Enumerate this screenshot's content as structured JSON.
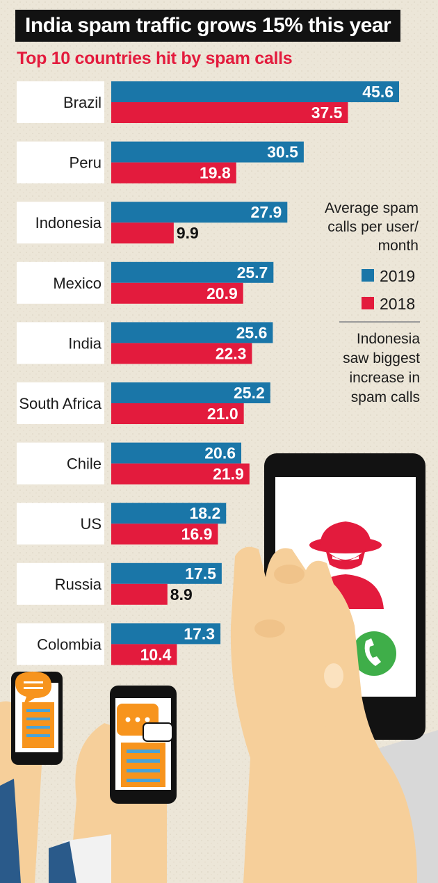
{
  "headline": "India spam traffic grows 15% this year",
  "colors": {
    "y2019": "#1a76a8",
    "y2018": "#e31b3d",
    "dark": "#121212"
  },
  "legend": {
    "title": [
      "Average spam",
      "calls per user/",
      "month"
    ],
    "items": [
      {
        "label": "2019",
        "color": "#1a76a8"
      },
      {
        "label": "2018",
        "color": "#e31b3d"
      }
    ]
  },
  "note": [
    "Indonesia",
    "saw biggest",
    "increase in",
    "spam calls"
  ],
  "chart_data": {
    "type": "bar",
    "orientation": "horizontal",
    "title": "Top 10 countries hit by spam calls",
    "categories": [
      "Brazil",
      "Peru",
      "Indonesia",
      "Mexico",
      "India",
      "South Africa",
      "Chile",
      "US",
      "Russia",
      "Colombia"
    ],
    "series": [
      {
        "name": "2019",
        "color": "#1a76a8",
        "values": [
          45.6,
          30.5,
          27.9,
          25.7,
          25.6,
          25.2,
          20.6,
          18.2,
          17.5,
          17.3
        ]
      },
      {
        "name": "2018",
        "color": "#e31b3d",
        "values": [
          37.5,
          19.8,
          9.9,
          20.9,
          22.3,
          21.0,
          21.9,
          16.9,
          8.9,
          10.4
        ]
      }
    ],
    "value_labels": {
      "2019": [
        "45.6",
        "30.5",
        "27.9",
        "25.7",
        "25.6",
        "25.2",
        "20.6",
        "18.2",
        "17.5",
        "17.3"
      ],
      "2018": [
        "37.5",
        "19.8",
        "9.9",
        "20.9",
        "22.3",
        "21.0",
        "21.9",
        "16.9",
        "8.9",
        "10.4"
      ]
    },
    "legend_placement": "right",
    "grid": false,
    "xlim": [
      0,
      46
    ]
  }
}
